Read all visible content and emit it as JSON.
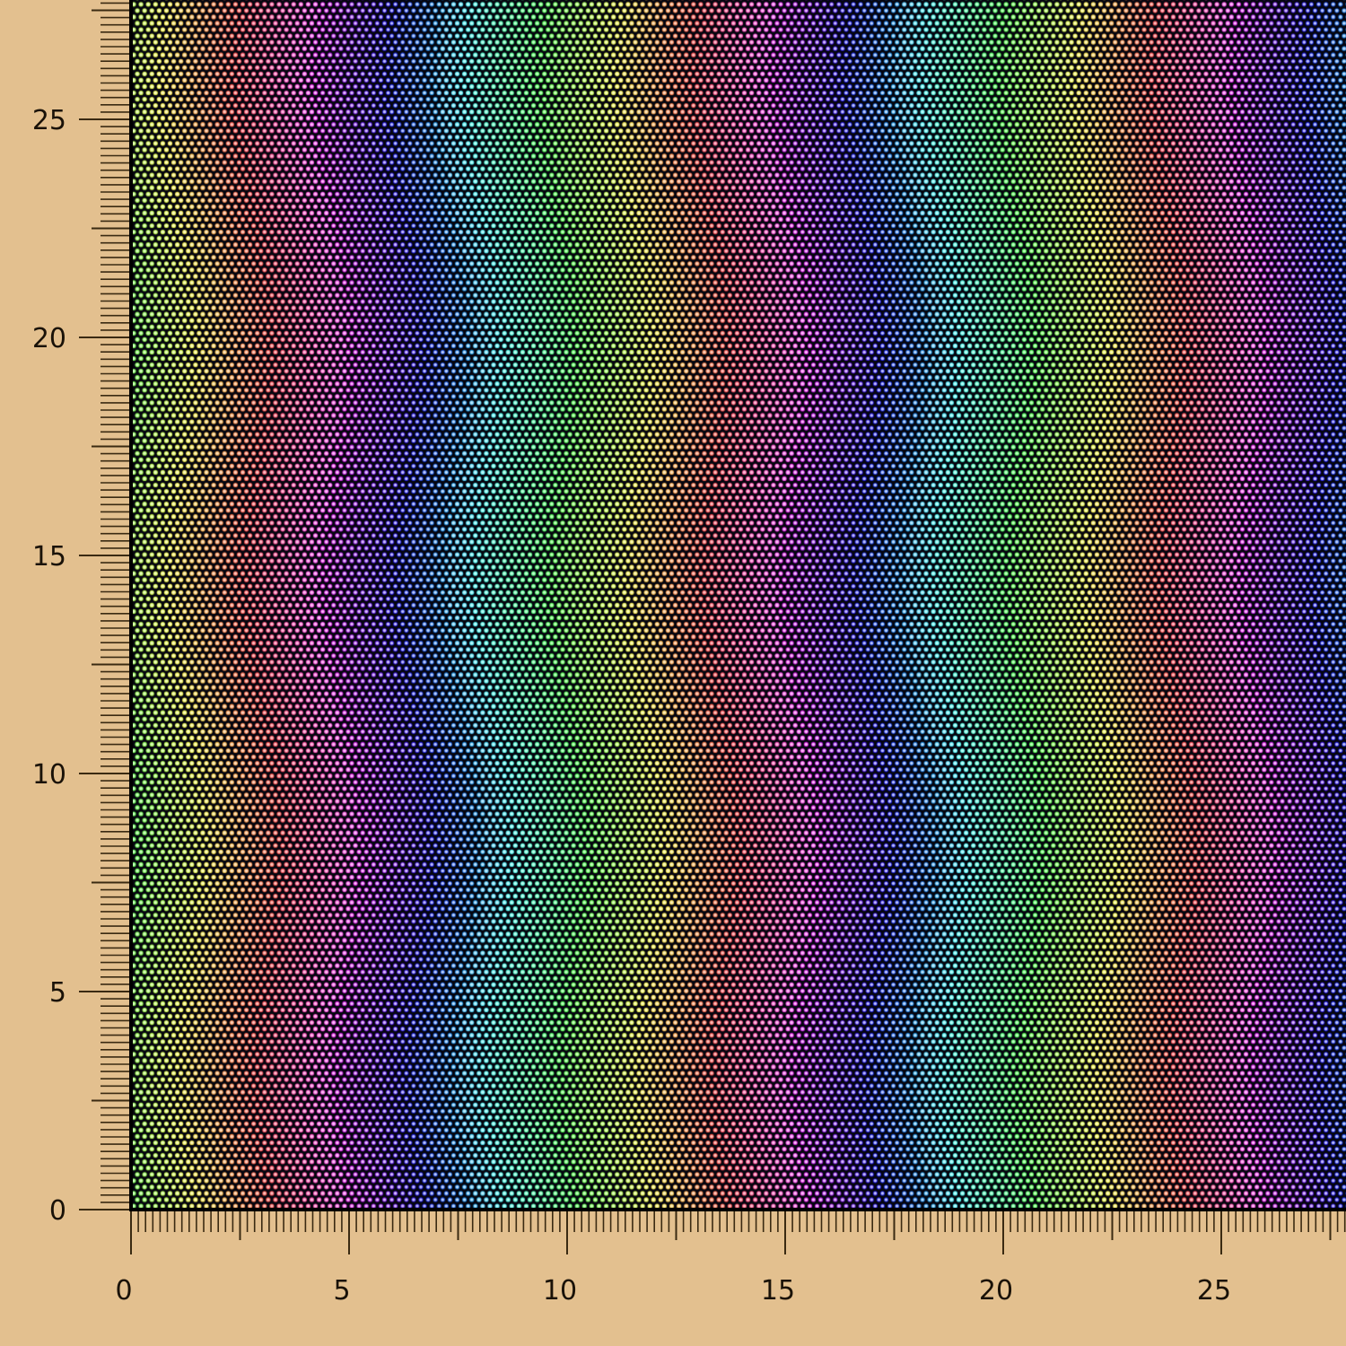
{
  "chart_data": {
    "type": "scatter",
    "title": "",
    "xlabel": "",
    "ylabel": "",
    "xlim": [
      0,
      27.85
    ],
    "ylim": [
      0,
      27.75
    ],
    "x_ticks": [
      0,
      5,
      10,
      15,
      20,
      25
    ],
    "y_ticks": [
      0,
      5,
      10,
      15,
      20,
      25
    ],
    "x_tick_labels": [
      "0",
      "5",
      "10",
      "15",
      "20",
      "25"
    ],
    "y_tick_labels": [
      "0",
      "5",
      "10",
      "15",
      "20",
      "25"
    ],
    "minor_tick_step": 0.1667,
    "medium_tick_step": 2.5,
    "grid": false,
    "points": {
      "layout": "hexagonal lattice",
      "spacing": 0.1667,
      "color_mapping": "hue cycles along x (yellow → red → magenta → blue → cyan → green → yellow)",
      "hue_period_x": 10.5,
      "yellow_at_x": [
        1.5,
        12.0,
        22.5
      ]
    },
    "colors": {
      "background": "#e3c08f",
      "plot_background": "#05050f",
      "axis": "#3a2a12",
      "frame": "#000000"
    }
  }
}
